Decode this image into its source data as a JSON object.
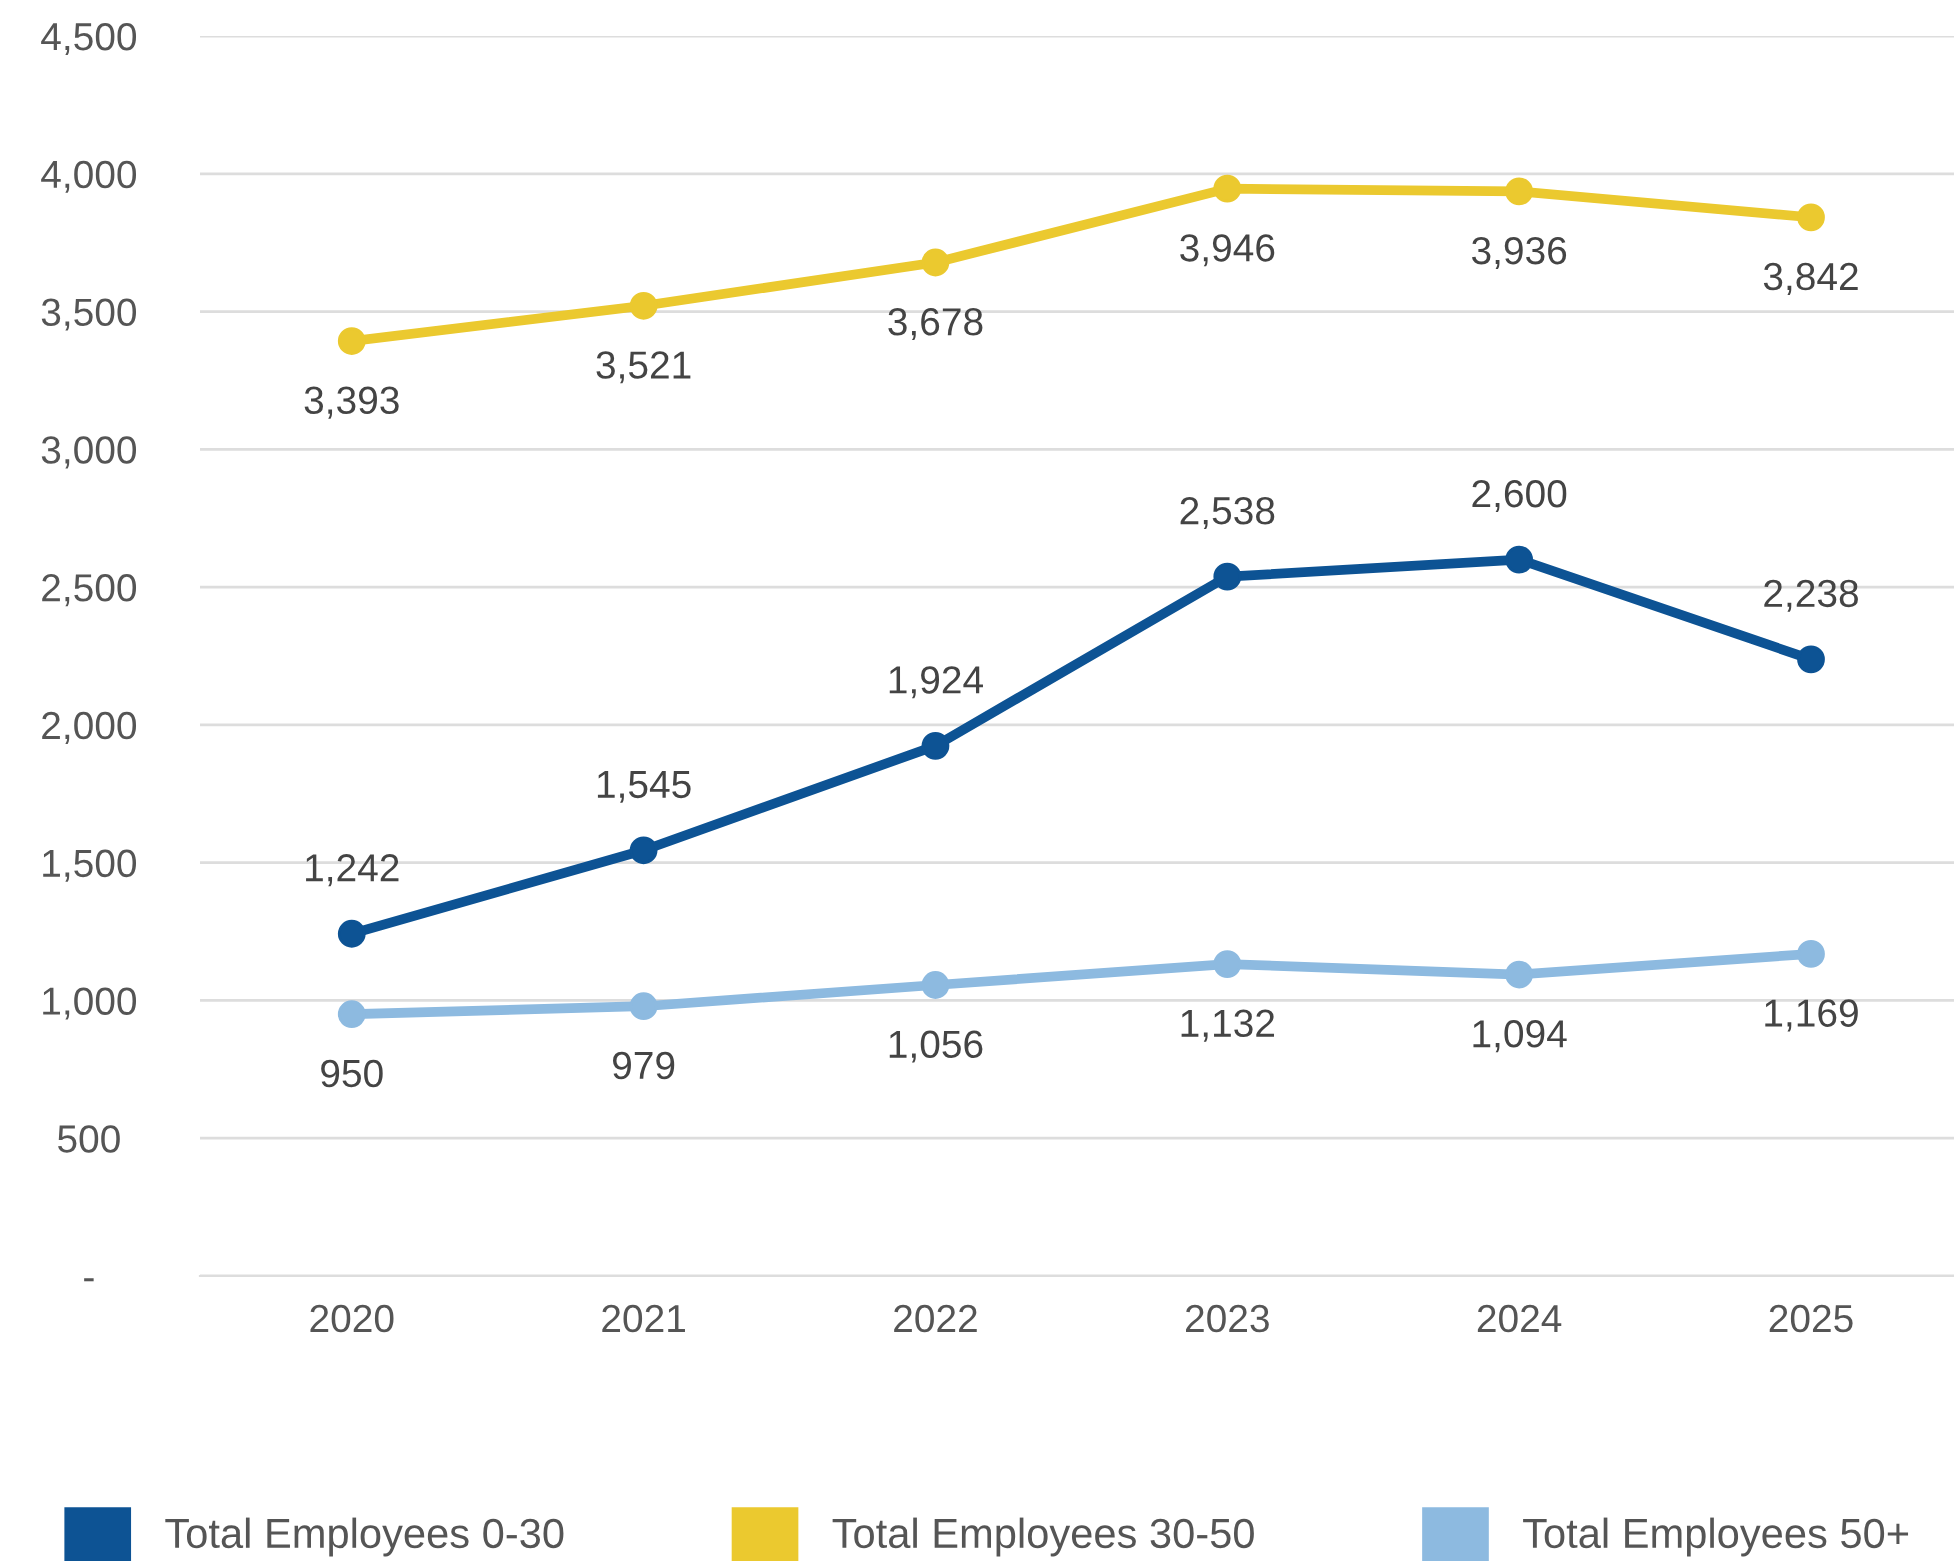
{
  "chart_data": {
    "type": "line",
    "categories": [
      "2020",
      "2021",
      "2022",
      "2023",
      "2024",
      "2025"
    ],
    "series": [
      {
        "name": "Total Employees 0-30",
        "color": "#0d5394",
        "values": [
          1242,
          1545,
          1924,
          2538,
          2600,
          2238
        ],
        "value_labels": [
          "1,242",
          "1,545",
          "1,924",
          "2,538",
          "2,600",
          "2,238"
        ]
      },
      {
        "name": "Total Employees 30-50",
        "color": "#ebc92f",
        "values": [
          3393,
          3521,
          3678,
          3946,
          3936,
          3842
        ],
        "value_labels": [
          "3,393",
          "3,521",
          "3,678",
          "3,946",
          "3,936",
          "3,842"
        ]
      },
      {
        "name": "Total Employees 50+",
        "color": "#8dbae0",
        "values": [
          950,
          979,
          1056,
          1132,
          1094,
          1169
        ],
        "value_labels": [
          "950",
          "979",
          "1,056",
          "1,132",
          "1,094",
          "1,169"
        ]
      }
    ],
    "ylim": [
      0,
      4500
    ],
    "yticks": [
      {
        "value": 0,
        "label": "-"
      },
      {
        "value": 500,
        "label": "500"
      },
      {
        "value": 1000,
        "label": "1,000"
      },
      {
        "value": 1500,
        "label": "1,500"
      },
      {
        "value": 2000,
        "label": "2,000"
      },
      {
        "value": 2500,
        "label": "2,500"
      },
      {
        "value": 3000,
        "label": "3,000"
      },
      {
        "value": 3500,
        "label": "3,500"
      },
      {
        "value": 4000,
        "label": "4,000"
      },
      {
        "value": 4500,
        "label": "4,500"
      }
    ],
    "grid": "y",
    "legend": "bottom",
    "marker": "circle",
    "line_style": "solid"
  }
}
